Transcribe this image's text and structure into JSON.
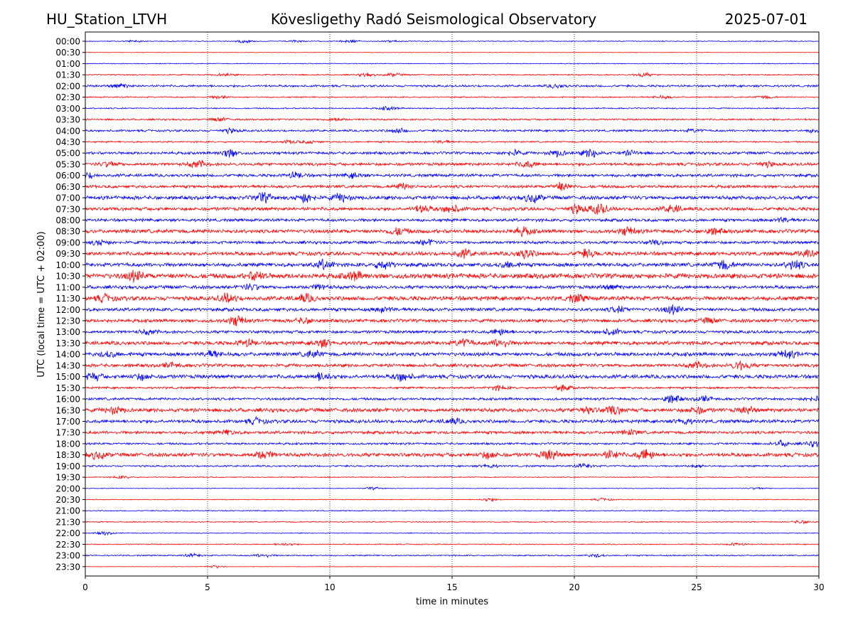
{
  "header": {
    "station": "HU_Station_LTVH",
    "observatory": "Kövesligethy Radó Seismological Observatory",
    "date": "2025-07-01"
  },
  "chart_data": {
    "type": "line",
    "title": "Kövesligethy Radó Seismological Observatory",
    "xlabel": "time in minutes",
    "ylabel": "UTC (local time = UTC + 02:00)",
    "xlim": [
      0,
      30
    ],
    "xticks": [
      "0",
      "5",
      "10",
      "15",
      "20",
      "25",
      "30"
    ],
    "grid": "vertical dotted lines at each x tick",
    "colors": {
      "even_rows": "#0000ff",
      "odd_rows": "#ff0000",
      "axis": "#000000"
    },
    "rows": [
      {
        "label": "00:00",
        "base": 0.1,
        "bursts": [
          [
            2.0,
            0.25
          ],
          [
            6.5,
            0.3
          ],
          [
            8.6,
            0.25
          ],
          [
            10.8,
            0.35
          ],
          [
            12.6,
            0.2
          ]
        ]
      },
      {
        "label": "00:30",
        "base": 0.06,
        "bursts": []
      },
      {
        "label": "01:00",
        "base": 0.1,
        "bursts": []
      },
      {
        "label": "01:30",
        "base": 0.15,
        "bursts": [
          [
            5.7,
            0.3
          ],
          [
            11.5,
            0.35
          ],
          [
            12.6,
            0.35
          ],
          [
            22.8,
            0.45
          ]
        ]
      },
      {
        "label": "02:00",
        "base": 0.25,
        "bursts": [
          [
            1.4,
            0.5
          ],
          [
            19.3,
            0.4
          ]
        ]
      },
      {
        "label": "02:30",
        "base": 0.15,
        "bursts": [
          [
            5.5,
            0.35
          ],
          [
            23.6,
            0.35
          ],
          [
            27.8,
            0.3
          ]
        ]
      },
      {
        "label": "03:00",
        "base": 0.15,
        "bursts": [
          [
            12.4,
            0.4
          ]
        ]
      },
      {
        "label": "03:30",
        "base": 0.2,
        "bursts": [
          [
            5.5,
            0.4
          ],
          [
            10.2,
            0.35
          ]
        ]
      },
      {
        "label": "04:00",
        "base": 0.25,
        "bursts": [
          [
            5.9,
            0.45
          ],
          [
            12.8,
            0.5
          ],
          [
            24.9,
            0.3
          ],
          [
            29.9,
            0.4
          ]
        ]
      },
      {
        "label": "04:30",
        "base": 0.18,
        "bursts": [
          [
            8.4,
            0.35
          ],
          [
            9.2,
            0.3
          ],
          [
            14.6,
            0.3
          ]
        ]
      },
      {
        "label": "05:00",
        "base": 0.32,
        "bursts": [
          [
            5.9,
            0.9
          ],
          [
            17.5,
            0.6
          ],
          [
            19.3,
            0.7
          ],
          [
            20.7,
            1.0
          ],
          [
            22.3,
            0.5
          ]
        ]
      },
      {
        "label": "05:30",
        "base": 0.35,
        "bursts": [
          [
            1.0,
            0.6
          ],
          [
            4.6,
            0.8
          ],
          [
            18.1,
            0.7
          ],
          [
            27.8,
            0.5
          ]
        ]
      },
      {
        "label": "06:00",
        "base": 0.35,
        "bursts": [
          [
            0.1,
            0.6
          ],
          [
            8.6,
            0.6
          ],
          [
            11.0,
            0.5
          ]
        ]
      },
      {
        "label": "06:30",
        "base": 0.35,
        "bursts": [
          [
            13.0,
            0.6
          ],
          [
            19.5,
            0.9
          ]
        ]
      },
      {
        "label": "07:00",
        "base": 0.45,
        "bursts": [
          [
            7.3,
            1.0
          ],
          [
            9.0,
            1.0
          ],
          [
            10.5,
            0.8
          ],
          [
            18.3,
            0.9
          ]
        ]
      },
      {
        "label": "07:30",
        "base": 0.4,
        "bursts": [
          [
            13.8,
            0.8
          ],
          [
            15.0,
            0.9
          ],
          [
            20.1,
            0.9
          ],
          [
            21.0,
            1.2
          ],
          [
            24.0,
            0.8
          ]
        ]
      },
      {
        "label": "08:00",
        "base": 0.35,
        "bursts": [
          [
            28.5,
            0.5
          ]
        ]
      },
      {
        "label": "08:30",
        "base": 0.45,
        "bursts": [
          [
            12.8,
            0.8
          ],
          [
            17.9,
            0.8
          ],
          [
            22.2,
            0.8
          ],
          [
            25.7,
            0.6
          ]
        ]
      },
      {
        "label": "09:00",
        "base": 0.35,
        "bursts": [
          [
            0.6,
            0.6
          ],
          [
            14.0,
            0.5
          ],
          [
            23.3,
            0.4
          ]
        ]
      },
      {
        "label": "09:30",
        "base": 0.45,
        "bursts": [
          [
            15.5,
            0.8
          ],
          [
            18.0,
            1.0
          ],
          [
            20.5,
            0.8
          ],
          [
            29.5,
            0.7
          ]
        ]
      },
      {
        "label": "10:00",
        "base": 0.45,
        "bursts": [
          [
            9.8,
            1.0
          ],
          [
            12.2,
            0.9
          ],
          [
            17.3,
            0.7
          ],
          [
            26.1,
            1.0
          ],
          [
            29.0,
            1.0
          ]
        ]
      },
      {
        "label": "10:30",
        "base": 0.6,
        "bursts": [
          [
            2.0,
            1.0
          ],
          [
            7.0,
            0.9
          ],
          [
            11.0,
            0.8
          ]
        ]
      },
      {
        "label": "11:00",
        "base": 0.4,
        "bursts": [
          [
            6.8,
            0.6
          ],
          [
            9.6,
            0.5
          ],
          [
            21.5,
            0.5
          ]
        ]
      },
      {
        "label": "11:30",
        "base": 0.5,
        "bursts": [
          [
            0.8,
            0.7
          ],
          [
            5.8,
            0.9
          ],
          [
            9.0,
            0.8
          ],
          [
            20.1,
            0.8
          ]
        ]
      },
      {
        "label": "12:00",
        "base": 0.4,
        "bursts": [
          [
            12.2,
            0.6
          ],
          [
            21.8,
            0.6
          ],
          [
            24.0,
            0.9
          ]
        ]
      },
      {
        "label": "12:30",
        "base": 0.4,
        "bursts": [
          [
            6.2,
            1.0
          ],
          [
            9.0,
            0.6
          ],
          [
            25.5,
            0.5
          ]
        ]
      },
      {
        "label": "13:00",
        "base": 0.35,
        "bursts": [
          [
            2.6,
            0.5
          ],
          [
            17.0,
            0.7
          ],
          [
            21.5,
            0.7
          ]
        ]
      },
      {
        "label": "13:30",
        "base": 0.45,
        "bursts": [
          [
            6.6,
            0.7
          ],
          [
            9.7,
            0.8
          ],
          [
            15.5,
            0.8
          ],
          [
            17.0,
            0.9
          ]
        ]
      },
      {
        "label": "14:00",
        "base": 0.45,
        "bursts": [
          [
            1.0,
            0.6
          ],
          [
            5.2,
            0.7
          ],
          [
            9.3,
            0.7
          ],
          [
            28.7,
            0.8
          ]
        ]
      },
      {
        "label": "14:30",
        "base": 0.4,
        "bursts": [
          [
            3.5,
            0.5
          ],
          [
            25.0,
            0.7
          ],
          [
            26.8,
            1.0
          ]
        ]
      },
      {
        "label": "15:00",
        "base": 0.45,
        "bursts": [
          [
            0.3,
            0.8
          ],
          [
            9.7,
            0.9
          ],
          [
            13.0,
            0.9
          ],
          [
            2.3,
            0.6
          ]
        ]
      },
      {
        "label": "15:30",
        "base": 0.25,
        "bursts": [
          [
            16.9,
            0.5
          ],
          [
            19.5,
            0.6
          ]
        ]
      },
      {
        "label": "16:00",
        "base": 0.3,
        "bursts": [
          [
            24.0,
            0.9
          ],
          [
            25.3,
            0.6
          ],
          [
            29.8,
            0.5
          ]
        ]
      },
      {
        "label": "16:30",
        "base": 0.45,
        "bursts": [
          [
            1.2,
            0.8
          ],
          [
            20.5,
            0.7
          ],
          [
            21.6,
            0.9
          ],
          [
            25.0,
            0.7
          ],
          [
            27.1,
            0.6
          ]
        ]
      },
      {
        "label": "17:00",
        "base": 0.4,
        "bursts": [
          [
            7.0,
            0.6
          ],
          [
            15.0,
            0.6
          ],
          [
            24.5,
            0.6
          ]
        ]
      },
      {
        "label": "17:30",
        "base": 0.35,
        "bursts": [
          [
            5.8,
            0.5
          ],
          [
            22.3,
            0.5
          ]
        ]
      },
      {
        "label": "18:00",
        "base": 0.25,
        "bursts": [
          [
            28.5,
            0.6
          ],
          [
            29.8,
            0.6
          ]
        ]
      },
      {
        "label": "18:30",
        "base": 0.45,
        "bursts": [
          [
            0.5,
            0.8
          ],
          [
            7.3,
            0.9
          ],
          [
            16.5,
            0.7
          ],
          [
            19.0,
            1.0
          ],
          [
            21.5,
            0.9
          ],
          [
            22.9,
            1.2
          ]
        ]
      },
      {
        "label": "19:00",
        "base": 0.2,
        "bursts": [
          [
            16.5,
            0.4
          ],
          [
            20.4,
            0.5
          ],
          [
            25.0,
            0.3
          ]
        ]
      },
      {
        "label": "19:30",
        "base": 0.12,
        "bursts": [
          [
            1.5,
            0.3
          ]
        ]
      },
      {
        "label": "20:00",
        "base": 0.08,
        "bursts": [
          [
            11.8,
            0.3
          ],
          [
            27.5,
            0.25
          ]
        ]
      },
      {
        "label": "20:30",
        "base": 0.1,
        "bursts": [
          [
            16.5,
            0.35
          ],
          [
            21.2,
            0.3
          ]
        ]
      },
      {
        "label": "21:00",
        "base": 0.12,
        "bursts": []
      },
      {
        "label": "21:30",
        "base": 0.12,
        "bursts": [
          [
            29.3,
            0.35
          ]
        ]
      },
      {
        "label": "22:00",
        "base": 0.1,
        "bursts": [
          [
            0.8,
            0.35
          ]
        ]
      },
      {
        "label": "22:30",
        "base": 0.12,
        "bursts": [
          [
            8.2,
            0.3
          ],
          [
            26.6,
            0.3
          ]
        ]
      },
      {
        "label": "23:00",
        "base": 0.15,
        "bursts": [
          [
            4.4,
            0.35
          ],
          [
            7.3,
            0.4
          ],
          [
            20.9,
            0.35
          ]
        ]
      },
      {
        "label": "23:30",
        "base": 0.05,
        "bursts": [
          [
            5.3,
            0.35
          ]
        ]
      }
    ]
  }
}
